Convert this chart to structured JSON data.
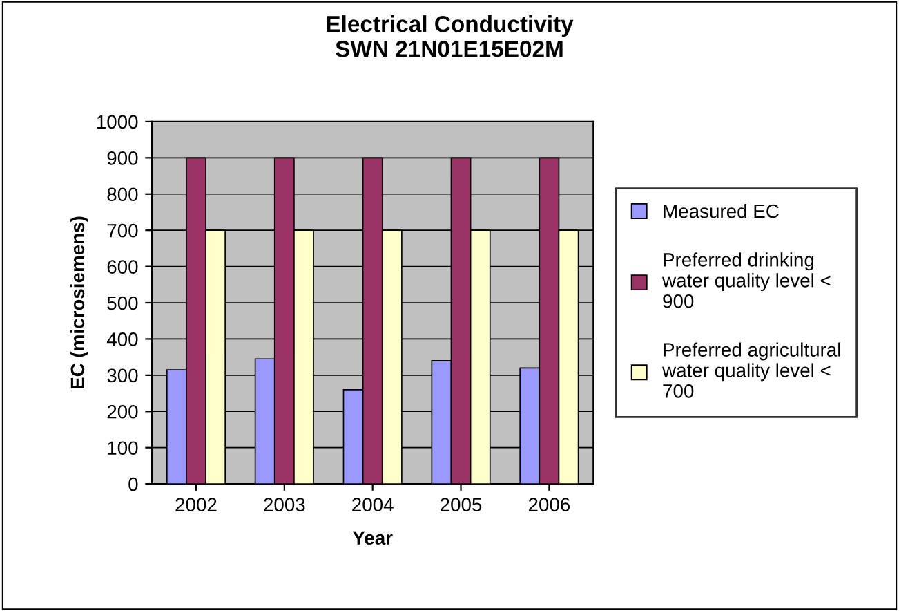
{
  "chart_data": {
    "type": "bar",
    "title": "Electrical Conductivity\nSWN 21N01E15E02M",
    "xlabel": "Year",
    "ylabel": "EC (microsiemens)",
    "categories": [
      "2002",
      "2003",
      "2004",
      "2005",
      "2006"
    ],
    "series": [
      {
        "name": "Measured EC",
        "color": "#9999ff",
        "values": [
          315,
          345,
          260,
          340,
          320
        ]
      },
      {
        "name": "Preferred drinking water quality level < 900",
        "color": "#993366",
        "values": [
          900,
          900,
          900,
          900,
          900
        ]
      },
      {
        "name": "Preferred agricultural water quality level < 700",
        "color": "#ffffcc",
        "values": [
          700,
          700,
          700,
          700,
          700
        ]
      }
    ],
    "ylim": [
      0,
      1000
    ],
    "yticks": [
      0,
      100,
      200,
      300,
      400,
      500,
      600,
      700,
      800,
      900,
      1000
    ],
    "grid": "y",
    "legend": "right"
  }
}
